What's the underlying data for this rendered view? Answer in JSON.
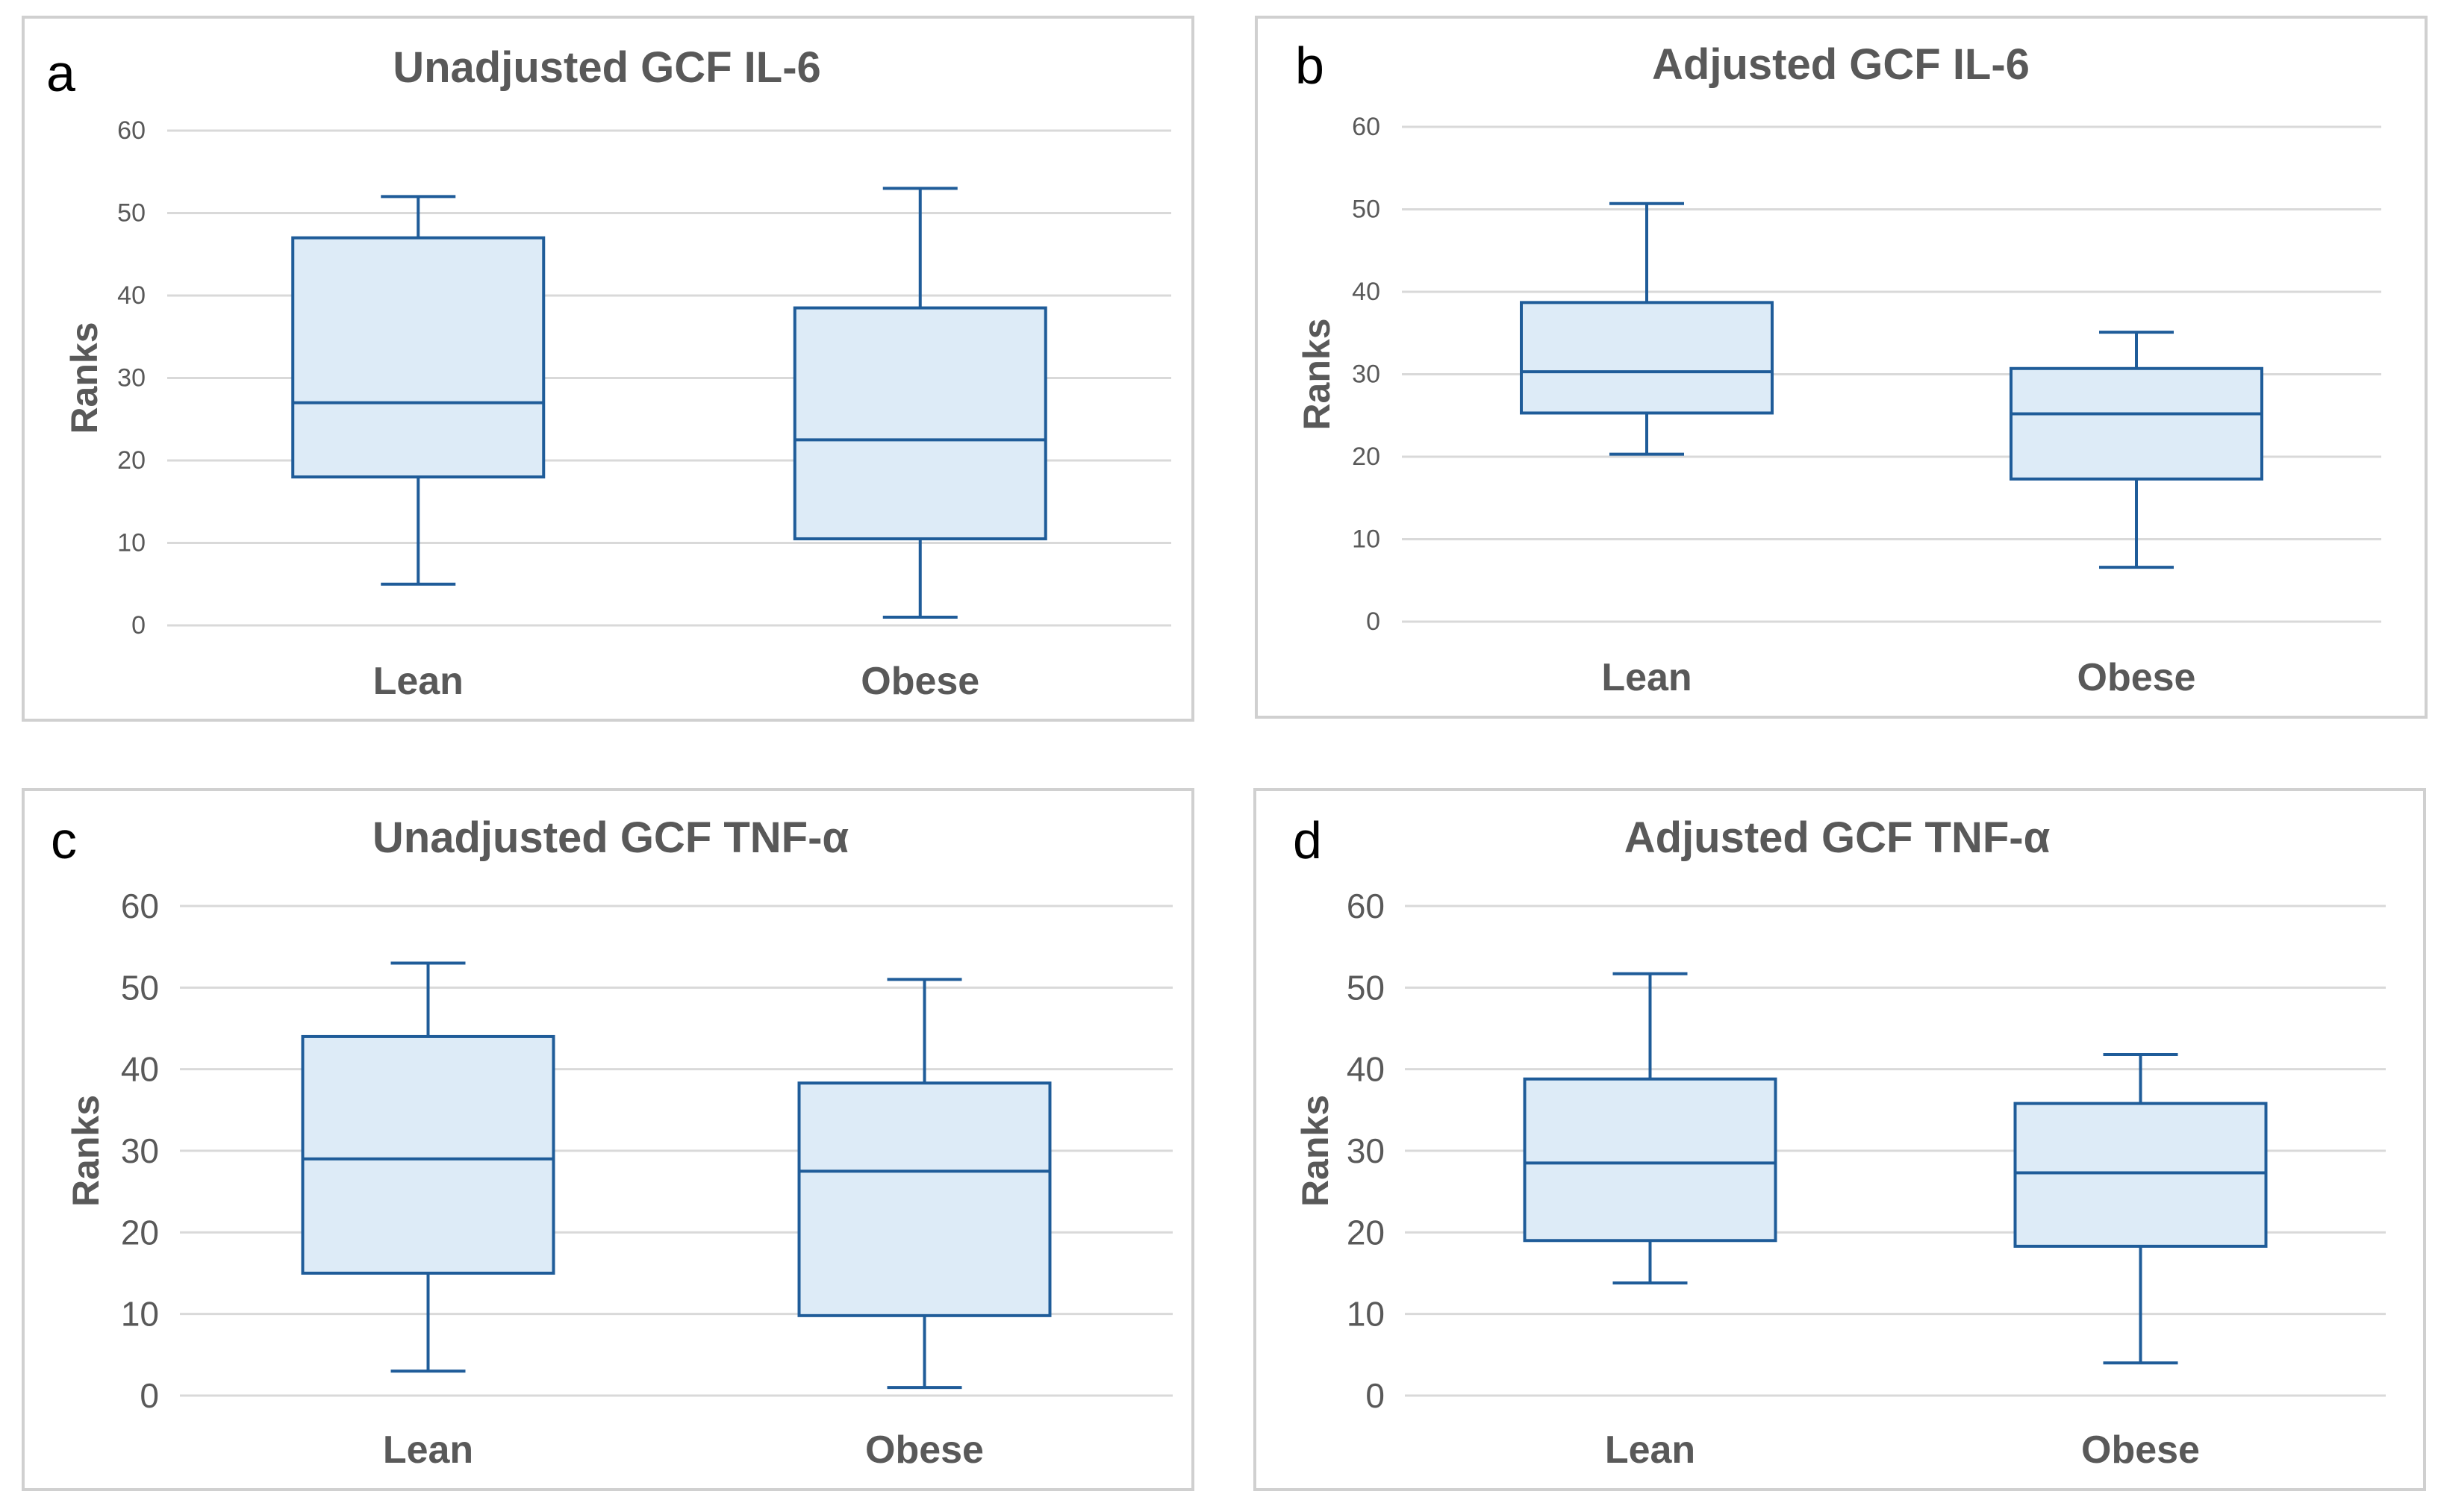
{
  "chart_data": [
    {
      "type": "boxplot",
      "panel_label": "a",
      "title": "Unadjusted GCF IL-6",
      "ylabel": "Ranks",
      "xlabel": "",
      "ylim": [
        0,
        60
      ],
      "yticks": [
        "0",
        "10",
        "20",
        "30",
        "40",
        "50",
        "60"
      ],
      "categories": [
        "Lean",
        "Obese"
      ],
      "boxes": [
        {
          "category": "Lean",
          "whisker_low": 5,
          "q1": 18,
          "median": 27,
          "q3": 47,
          "whisker_high": 52
        },
        {
          "category": "Obese",
          "whisker_low": 1,
          "q1": 10.5,
          "median": 22.5,
          "q3": 38.5,
          "whisker_high": 53
        }
      ]
    },
    {
      "type": "boxplot",
      "panel_label": "b",
      "title": "Adjusted GCF IL-6",
      "ylabel": "Ranks",
      "xlabel": "",
      "ylim": [
        0,
        60
      ],
      "yticks": [
        "0",
        "10",
        "20",
        "30",
        "40",
        "50",
        "60"
      ],
      "categories": [
        "Lean",
        "Obese"
      ],
      "boxes": [
        {
          "category": "Lean",
          "whisker_low": 20.3,
          "q1": 25.3,
          "median": 30.3,
          "q3": 38.7,
          "whisker_high": 50.7
        },
        {
          "category": "Obese",
          "whisker_low": 6.6,
          "q1": 17.3,
          "median": 25.2,
          "q3": 30.7,
          "whisker_high": 35.1
        }
      ]
    },
    {
      "type": "boxplot",
      "panel_label": "c",
      "title": "Unadjusted GCF TNF-α",
      "ylabel": "Ranks",
      "xlabel": "",
      "ylim": [
        0,
        60
      ],
      "yticks": [
        "0",
        "10",
        "20",
        "30",
        "40",
        "50",
        "60"
      ],
      "categories": [
        "Lean",
        "Obese"
      ],
      "boxes": [
        {
          "category": "Lean",
          "whisker_low": 3,
          "q1": 15,
          "median": 29,
          "q3": 44,
          "whisker_high": 53
        },
        {
          "category": "Obese",
          "whisker_low": 1,
          "q1": 9.8,
          "median": 27.5,
          "q3": 38.3,
          "whisker_high": 51
        }
      ]
    },
    {
      "type": "boxplot",
      "panel_label": "d",
      "title": "Adjusted GCF TNF-α",
      "ylabel": "Ranks",
      "xlabel": "",
      "ylim": [
        0,
        60
      ],
      "yticks": [
        "0",
        "10",
        "20",
        "30",
        "40",
        "50",
        "60"
      ],
      "categories": [
        "Lean",
        "Obese"
      ],
      "boxes": [
        {
          "category": "Lean",
          "whisker_low": 13.8,
          "q1": 19,
          "median": 28.5,
          "q3": 38.8,
          "whisker_high": 51.7
        },
        {
          "category": "Obese",
          "whisker_low": 4,
          "q1": 18.3,
          "median": 27.3,
          "q3": 35.8,
          "whisker_high": 41.8
        }
      ]
    }
  ]
}
